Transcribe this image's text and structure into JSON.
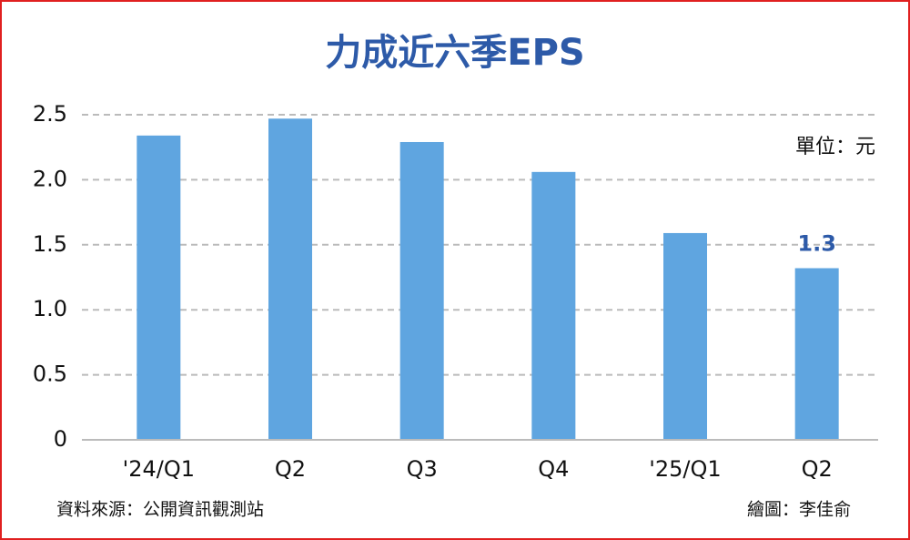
{
  "chart_data": {
    "type": "bar",
    "title": "力成近六季EPS",
    "unit": "單位：元",
    "categories": [
      "'24/Q1",
      "Q2",
      "Q3",
      "Q4",
      "'25/Q1",
      "Q2"
    ],
    "values": [
      2.34,
      2.47,
      2.29,
      2.06,
      1.59,
      1.32
    ],
    "value_labels": [
      null,
      null,
      null,
      null,
      null,
      "1.3"
    ],
    "color": "#5fa5e0",
    "ylim": [
      0,
      2.5
    ],
    "yticks": [
      0,
      0.5,
      {
        "value": 1,
        "label": "1.0"
      },
      1.5,
      {
        "value": 2,
        "label": "2.0"
      },
      2.5
    ],
    "grid": true,
    "source": "資料來源：公開資訊觀測站",
    "credit": "繪圖：李佳俞"
  }
}
